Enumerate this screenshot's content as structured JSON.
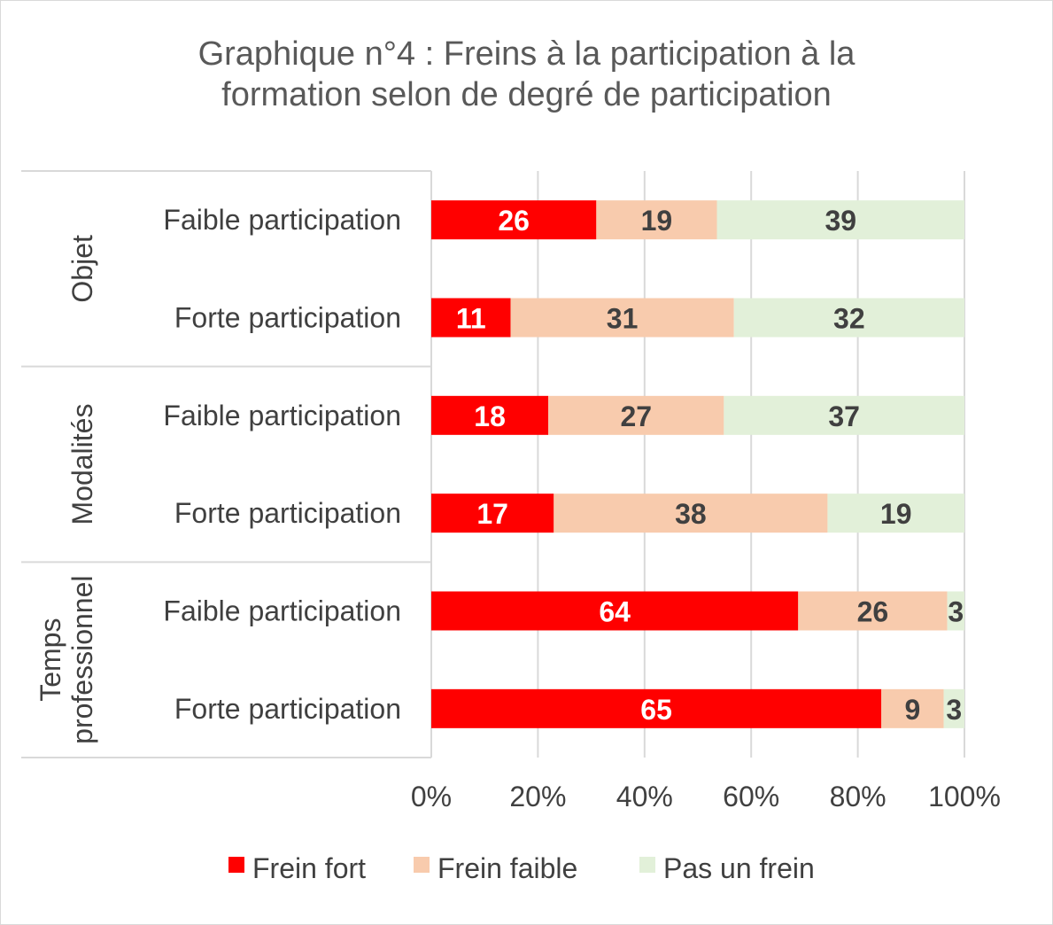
{
  "title_lines": [
    "Graphique n°4 : Freins à la participation à la",
    "formation selon de degré de participation"
  ],
  "chart_data": {
    "type": "bar",
    "orientation": "horizontal",
    "stacked": "percent",
    "title": "Graphique n°4 : Freins à la participation à la formation selon de degré de participation",
    "groups": [
      {
        "label": "Objet",
        "categories": [
          "Faible participation",
          "Forte participation"
        ]
      },
      {
        "label": "Modalités",
        "categories": [
          "Faible participation",
          "Forte participation"
        ]
      },
      {
        "label_lines": [
          "Temps",
          "professionnel"
        ],
        "categories": [
          "Faible participation",
          "Forte participation"
        ]
      }
    ],
    "series": [
      {
        "name": "Frein fort",
        "color": "#ff0000",
        "label_color": "#ffffff",
        "values": [
          26,
          11,
          18,
          17,
          64,
          65
        ]
      },
      {
        "name": "Frein faible",
        "color": "#f8cbad",
        "label_color": "#404040",
        "values": [
          19,
          31,
          27,
          38,
          26,
          9
        ]
      },
      {
        "name": "Pas un frein",
        "color": "#e2f0d9",
        "label_color": "#404040",
        "values": [
          39,
          32,
          37,
          19,
          3,
          3
        ]
      }
    ],
    "x_ticks": [
      "0%",
      "20%",
      "40%",
      "60%",
      "80%",
      "100%"
    ],
    "xlim": [
      0,
      100
    ],
    "grid": true,
    "legend_position": "bottom"
  }
}
